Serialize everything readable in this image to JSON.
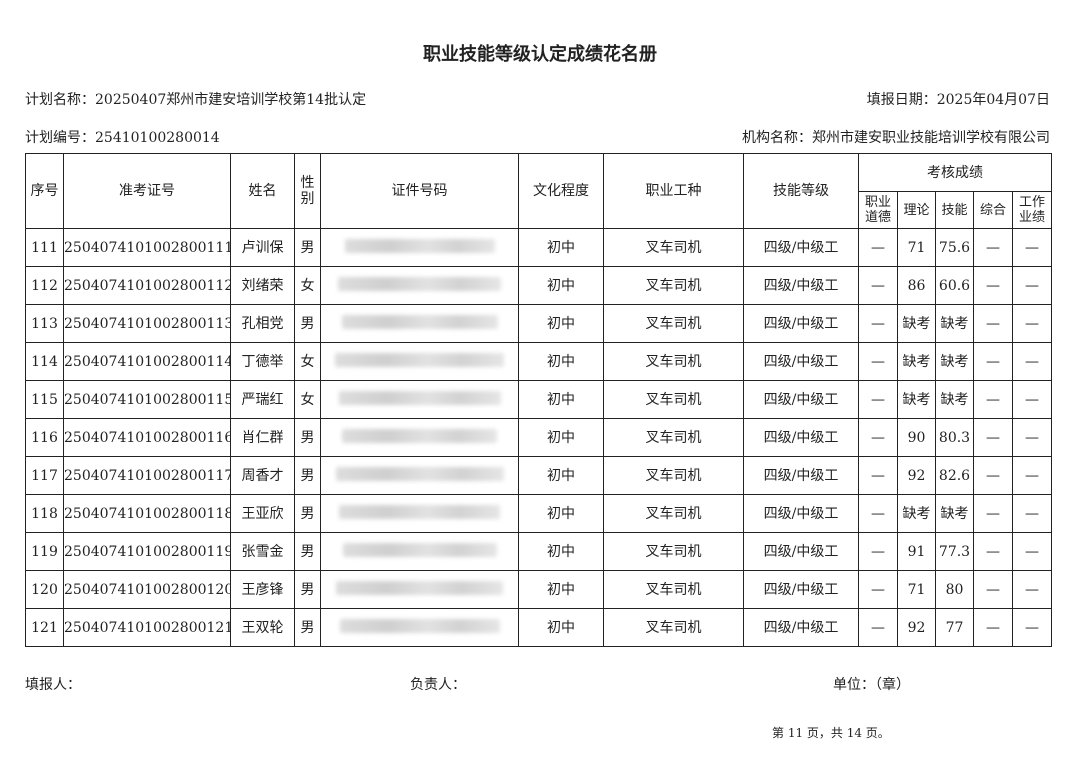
{
  "title": "职业技能等级认定成绩花名册",
  "plan_name": "计划名称：20250407郑州市建安培训学校第14批认定",
  "fill_date": "填报日期：2025年04月07日",
  "plan_no": "计划编号：25410100280014",
  "org_name": "机构名称：郑州市建安职业技能培训学校有限公司",
  "headers": {
    "seq": "序号",
    "exam_no": "准考证号",
    "name": "姓名",
    "gender": "性别",
    "id_no": "证件号码",
    "education": "文化程度",
    "occupation": "职业工种",
    "level": "技能等级",
    "scores": "考核成绩",
    "ethics": "职业道德",
    "theory": "理论",
    "skill": "技能",
    "overall": "综合",
    "performance": "工作业绩"
  },
  "rows": [
    {
      "seq": "111",
      "exam_no": "2504074101002800111",
      "name": "卢训保",
      "gender": "男",
      "education": "初中",
      "occupation": "叉车司机",
      "level": "四级/中级工",
      "ethics": "—",
      "theory": "71",
      "skill": "75.6",
      "overall": "—",
      "performance": "—"
    },
    {
      "seq": "112",
      "exam_no": "2504074101002800112",
      "name": "刘绪荣",
      "gender": "女",
      "education": "初中",
      "occupation": "叉车司机",
      "level": "四级/中级工",
      "ethics": "—",
      "theory": "86",
      "skill": "60.6",
      "overall": "—",
      "performance": "—"
    },
    {
      "seq": "113",
      "exam_no": "2504074101002800113",
      "name": "孔相党",
      "gender": "男",
      "education": "初中",
      "occupation": "叉车司机",
      "level": "四级/中级工",
      "ethics": "—",
      "theory": "缺考",
      "skill": "缺考",
      "overall": "—",
      "performance": "—"
    },
    {
      "seq": "114",
      "exam_no": "2504074101002800114",
      "name": "丁德举",
      "gender": "女",
      "education": "初中",
      "occupation": "叉车司机",
      "level": "四级/中级工",
      "ethics": "—",
      "theory": "缺考",
      "skill": "缺考",
      "overall": "—",
      "performance": "—"
    },
    {
      "seq": "115",
      "exam_no": "2504074101002800115",
      "name": "严瑞红",
      "gender": "女",
      "education": "初中",
      "occupation": "叉车司机",
      "level": "四级/中级工",
      "ethics": "—",
      "theory": "缺考",
      "skill": "缺考",
      "overall": "—",
      "performance": "—"
    },
    {
      "seq": "116",
      "exam_no": "2504074101002800116",
      "name": "肖仁群",
      "gender": "男",
      "education": "初中",
      "occupation": "叉车司机",
      "level": "四级/中级工",
      "ethics": "—",
      "theory": "90",
      "skill": "80.3",
      "overall": "—",
      "performance": "—"
    },
    {
      "seq": "117",
      "exam_no": "2504074101002800117",
      "name": "周香才",
      "gender": "男",
      "education": "初中",
      "occupation": "叉车司机",
      "level": "四级/中级工",
      "ethics": "—",
      "theory": "92",
      "skill": "82.6",
      "overall": "—",
      "performance": "—"
    },
    {
      "seq": "118",
      "exam_no": "2504074101002800118",
      "name": "王亚欣",
      "gender": "男",
      "education": "初中",
      "occupation": "叉车司机",
      "level": "四级/中级工",
      "ethics": "—",
      "theory": "缺考",
      "skill": "缺考",
      "overall": "—",
      "performance": "—"
    },
    {
      "seq": "119",
      "exam_no": "2504074101002800119",
      "name": "张雪金",
      "gender": "男",
      "education": "初中",
      "occupation": "叉车司机",
      "level": "四级/中级工",
      "ethics": "—",
      "theory": "91",
      "skill": "77.3",
      "overall": "—",
      "performance": "—"
    },
    {
      "seq": "120",
      "exam_no": "2504074101002800120",
      "name": "王彦锋",
      "gender": "男",
      "education": "初中",
      "occupation": "叉车司机",
      "level": "四级/中级工",
      "ethics": "—",
      "theory": "71",
      "skill": "80",
      "overall": "—",
      "performance": "—"
    },
    {
      "seq": "121",
      "exam_no": "2504074101002800121",
      "name": "王双轮",
      "gender": "男",
      "education": "初中",
      "occupation": "叉车司机",
      "level": "四级/中级工",
      "ethics": "—",
      "theory": "92",
      "skill": "77",
      "overall": "—",
      "performance": "—"
    }
  ],
  "footer": {
    "filler": "填报人：",
    "responsible": "负责人：",
    "unit": "单位：（章）",
    "page": "第 11 页，共 14 页。"
  }
}
